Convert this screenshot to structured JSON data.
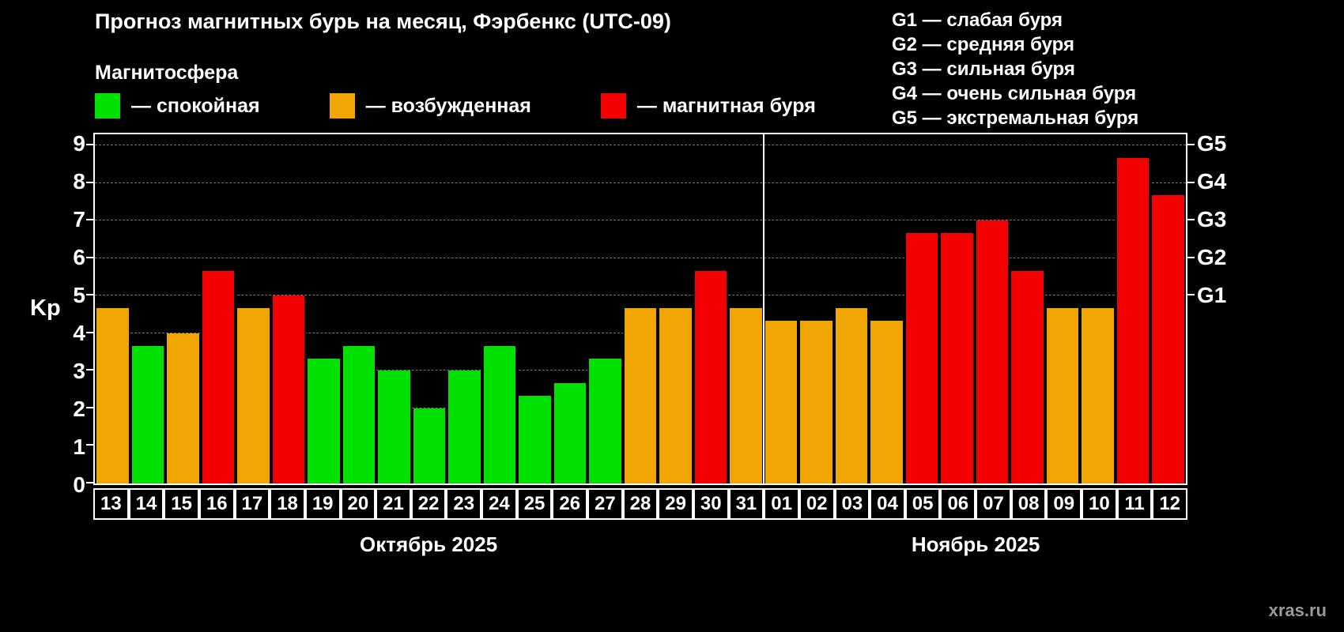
{
  "title": "Прогноз магнитных бурь на месяц, Фэрбенкс (UTC-09)",
  "subtitle": "Магнитосфера",
  "legend": [
    {
      "label": "— спокойная",
      "key": "quiet"
    },
    {
      "label": "— возбужденная",
      "key": "excited"
    },
    {
      "label": "— магнитная буря",
      "key": "storm"
    }
  ],
  "colors": {
    "quiet": "#00e100",
    "excited": "#f0a500",
    "storm": "#f40000"
  },
  "g_legend": [
    "G1 — слабая буря",
    "G2 — средняя буря",
    "G3 — сильная буря",
    "G4 — очень сильная буря",
    "G5 — экстремальная буря"
  ],
  "watermark": "xras.ru",
  "chart_data": {
    "type": "bar",
    "title": "Прогноз магнитных бурь на месяц, Фэрбенкс (UTC-09)",
    "ylabel": "Kp",
    "ylim": [
      0,
      9.3
    ],
    "yticks": [
      0,
      1,
      2,
      3,
      4,
      5,
      6,
      7,
      8,
      9
    ],
    "right_ticks": [
      {
        "label": "G1",
        "kp": 5
      },
      {
        "label": "G2",
        "kp": 6
      },
      {
        "label": "G3",
        "kp": 7
      },
      {
        "label": "G4",
        "kp": 8
      },
      {
        "label": "G5",
        "kp": 9
      }
    ],
    "grid": "dashed-horizontal",
    "legend_position": "top-left",
    "groups": [
      {
        "label": "Октябрь 2025",
        "days": [
          {
            "day": "13",
            "value": 4.67,
            "status": "excited"
          },
          {
            "day": "14",
            "value": 3.67,
            "status": "quiet"
          },
          {
            "day": "15",
            "value": 4.0,
            "status": "excited"
          },
          {
            "day": "16",
            "value": 5.67,
            "status": "storm"
          },
          {
            "day": "17",
            "value": 4.67,
            "status": "excited"
          },
          {
            "day": "18",
            "value": 5.0,
            "status": "storm"
          },
          {
            "day": "19",
            "value": 3.33,
            "status": "quiet"
          },
          {
            "day": "20",
            "value": 3.67,
            "status": "quiet"
          },
          {
            "day": "21",
            "value": 3.0,
            "status": "quiet"
          },
          {
            "day": "22",
            "value": 2.0,
            "status": "quiet"
          },
          {
            "day": "23",
            "value": 3.0,
            "status": "quiet"
          },
          {
            "day": "24",
            "value": 3.67,
            "status": "quiet"
          },
          {
            "day": "25",
            "value": 2.33,
            "status": "quiet"
          },
          {
            "day": "26",
            "value": 2.67,
            "status": "quiet"
          },
          {
            "day": "27",
            "value": 3.33,
            "status": "quiet"
          },
          {
            "day": "28",
            "value": 4.67,
            "status": "excited"
          },
          {
            "day": "29",
            "value": 4.67,
            "status": "excited"
          },
          {
            "day": "30",
            "value": 5.67,
            "status": "storm"
          },
          {
            "day": "31",
            "value": 4.67,
            "status": "excited"
          }
        ]
      },
      {
        "label": "Ноябрь 2025",
        "days": [
          {
            "day": "01",
            "value": 4.33,
            "status": "excited"
          },
          {
            "day": "02",
            "value": 4.33,
            "status": "excited"
          },
          {
            "day": "03",
            "value": 4.67,
            "status": "excited"
          },
          {
            "day": "04",
            "value": 4.33,
            "status": "excited"
          },
          {
            "day": "05",
            "value": 6.67,
            "status": "storm"
          },
          {
            "day": "06",
            "value": 6.67,
            "status": "storm"
          },
          {
            "day": "07",
            "value": 7.0,
            "status": "storm"
          },
          {
            "day": "08",
            "value": 5.67,
            "status": "storm"
          },
          {
            "day": "09",
            "value": 4.67,
            "status": "excited"
          },
          {
            "day": "10",
            "value": 4.67,
            "status": "excited"
          },
          {
            "day": "11",
            "value": 8.67,
            "status": "storm"
          },
          {
            "day": "12",
            "value": 7.67,
            "status": "storm"
          }
        ]
      }
    ]
  }
}
